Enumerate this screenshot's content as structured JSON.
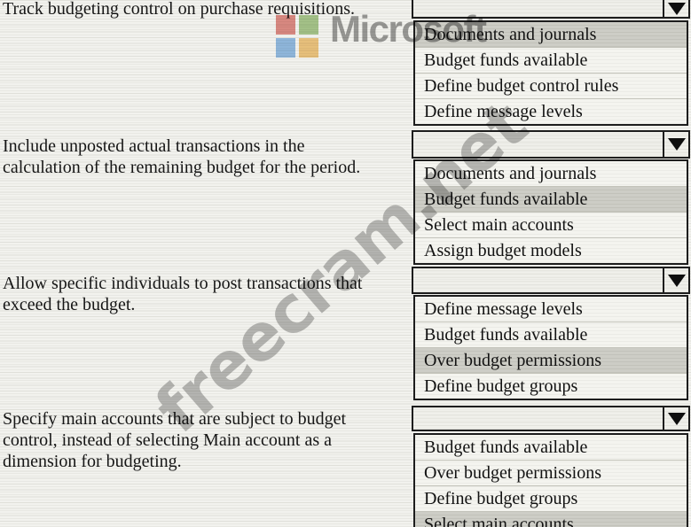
{
  "watermarks": {
    "microsoft_label": "Microsoft",
    "freecram_label": "freecram.net",
    "logo_colors": {
      "red": "#e0837c",
      "green": "#a3c585",
      "blue": "#8bb8e8",
      "orange": "#f2c377"
    }
  },
  "colors": {
    "paper": "#f2f2ee",
    "selected_option_background": "#cdcdc6",
    "box_border": "#1d1d1d"
  },
  "sections": [
    {
      "question": "Track budgeting control on purchase requisitions.",
      "value": "",
      "options": [
        {
          "label": "Documents and journals",
          "selected": true
        },
        {
          "label": "Budget funds available",
          "selected": false
        },
        {
          "label": "Define budget control rules",
          "selected": false
        },
        {
          "label": "Define message levels",
          "selected": false
        }
      ]
    },
    {
      "question": "Include unposted actual transactions in the\ncalculation of the remaining budget for the period.",
      "value": "",
      "options": [
        {
          "label": "Documents and journals",
          "selected": false
        },
        {
          "label": "Budget funds available",
          "selected": true
        },
        {
          "label": "Select main accounts",
          "selected": false
        },
        {
          "label": "Assign budget models",
          "selected": false
        }
      ]
    },
    {
      "question": "Allow specific individuals to post transactions that\nexceed the budget.",
      "value": "",
      "options": [
        {
          "label": "Define message levels",
          "selected": false
        },
        {
          "label": "Budget funds available",
          "selected": false
        },
        {
          "label": "Over budget permissions",
          "selected": true
        },
        {
          "label": "Define budget groups",
          "selected": false
        }
      ]
    },
    {
      "question": "Specify main accounts that are subject to budget\ncontrol, instead of selecting Main account as a\ndimension for budgeting.",
      "value": "",
      "options": [
        {
          "label": "Budget funds available",
          "selected": false
        },
        {
          "label": "Over budget permissions",
          "selected": false
        },
        {
          "label": "Define budget groups",
          "selected": false
        },
        {
          "label": "Select main accounts",
          "selected": true
        }
      ]
    }
  ]
}
